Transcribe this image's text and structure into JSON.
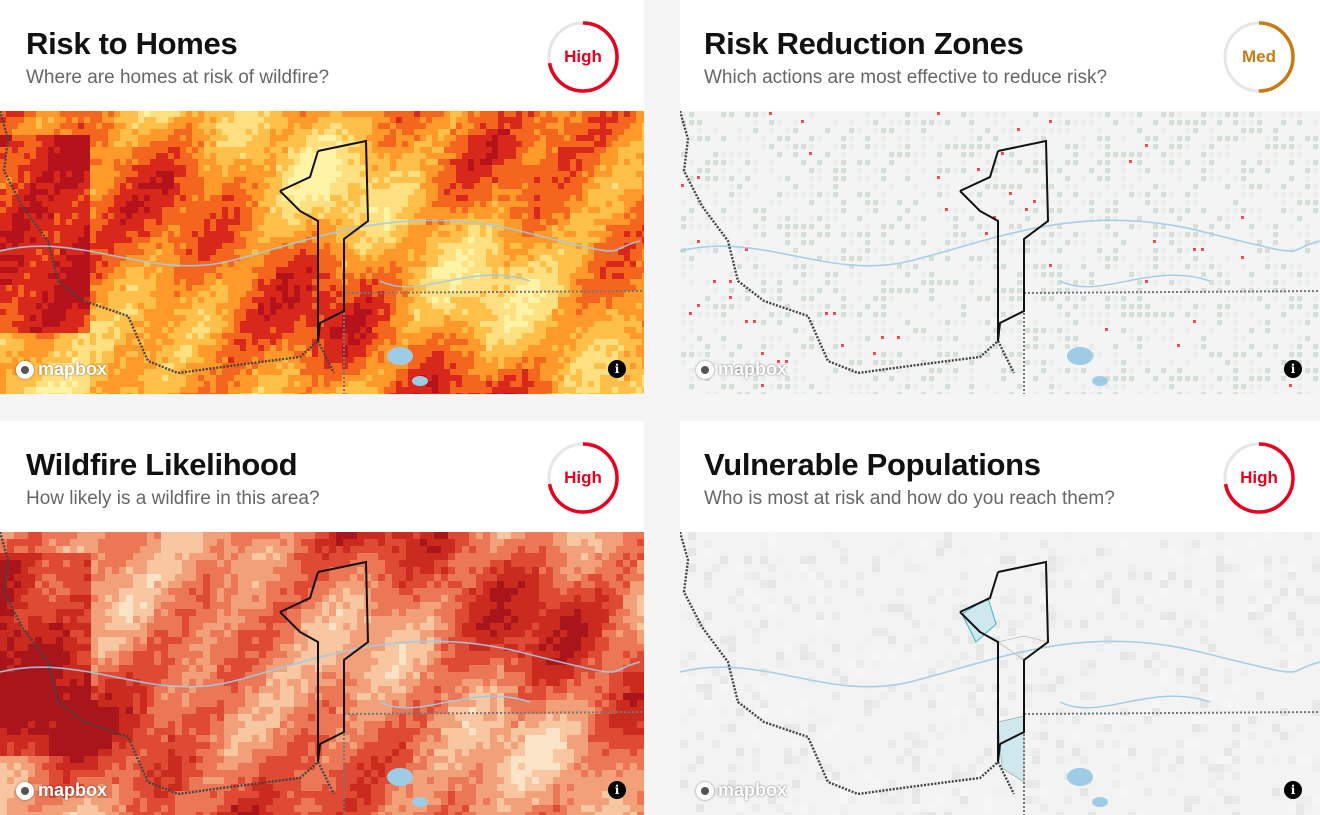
{
  "cards": [
    {
      "title": "Risk to Homes",
      "subtitle": "Where are homes at risk of wildfire?",
      "badge": "High",
      "badge_color": "#e8001c",
      "logo_text": "mapbox",
      "info_icon": "info-icon",
      "palette": [
        "#fff3a6",
        "#ffe080",
        "#ffc04a",
        "#ff9a2a",
        "#f4651d",
        "#d8281b",
        "#b5121b"
      ]
    },
    {
      "title": "Risk Reduction Zones",
      "subtitle": "Which actions are most effective to reduce risk?",
      "badge": "Med",
      "badge_color": "#c97a10",
      "logo_text": "mapbox",
      "info_icon": "info-icon",
      "palette": [
        "#f3f3f3",
        "#e9ecea",
        "#d6e0d8",
        "#c9d4cc",
        "#f04a5a",
        "#e8324a",
        "#f7eef0"
      ]
    },
    {
      "title": "Wildfire Likelihood",
      "subtitle": "How likely is a wildfire in this area?",
      "badge": "High",
      "badge_color": "#e8001c",
      "logo_text": "mapbox",
      "info_icon": "info-icon",
      "palette": [
        "#fbe3c8",
        "#f8c6a0",
        "#f2a07a",
        "#ec7757",
        "#df4a34",
        "#cb2a1f",
        "#a9151a"
      ]
    },
    {
      "title": "Vulnerable Populations",
      "subtitle": "Who is most at risk and how do you reach them?",
      "badge": "High",
      "badge_color": "#e8001c",
      "logo_text": "mapbox",
      "info_icon": "info-icon",
      "palette": [
        "#f6f6f6",
        "#f1f1f1",
        "#ececec",
        "#e8e8e8",
        "#eeeeee",
        "#f3f3f3",
        "#e6e6e6"
      ]
    }
  ]
}
